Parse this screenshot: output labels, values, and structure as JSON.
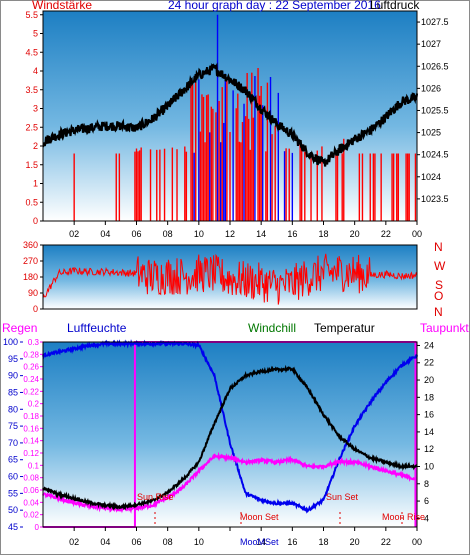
{
  "header": {
    "left_label": "Windstärke",
    "title": "24 hour graph day : 22 September 2016",
    "right_label": "Luftdruck"
  },
  "compass": [
    "N",
    "W",
    "S",
    "O",
    "N"
  ],
  "bottom_labels": {
    "regen": "Regen",
    "luftfeuchte": "Luftfeuchte",
    "windchill": "Windchill",
    "temperatur": "Temperatur",
    "taupunkt": "Taupunkt"
  },
  "events": {
    "sun_rise": "Sun Rise",
    "moon_set": "Moon Set",
    "sun_set": "Sun Set",
    "moon_rise": "Moon Rise",
    "moomset_axis": "MooMSet"
  },
  "colors": {
    "wind": "#ff0000",
    "wind_blue": "#0000ff",
    "pressure": "#000000",
    "humidity": "#0000ee",
    "temperature": "#000000",
    "dewpoint": "#ff00ff",
    "rain": "#ff00ff",
    "sky_top": "#1d7fc3",
    "sky_bottom": "#ffffff"
  },
  "chart_data": [
    {
      "type": "line",
      "title": "24 hour graph day : 22 September 2016",
      "x_ticks": [
        "02",
        "04",
        "06",
        "08",
        "10",
        "12",
        "14",
        "16",
        "18",
        "20",
        "22",
        "00"
      ],
      "y_left_label": "Windstärke",
      "y_left_ticks": [
        "0",
        "0.5",
        "1",
        "1.5",
        "2",
        "2.5",
        "3",
        "3.5",
        "4",
        "4.5",
        "5",
        "5.5"
      ],
      "y_left_range": [
        0,
        5.6
      ],
      "y_right_label": "Luftdruck",
      "y_right_ticks": [
        "1023.5",
        "1024",
        "1024.5",
        "1025",
        "1025.5",
        "1026",
        "1026.5",
        "1027",
        "1027.5"
      ],
      "y_right_range": [
        1023,
        1027.75
      ],
      "series": [
        {
          "name": "Luftdruck",
          "x": [
            0,
            1,
            2,
            3,
            4,
            5,
            6,
            7,
            8,
            9,
            10,
            11,
            12,
            13,
            14,
            15,
            16,
            17,
            18,
            19,
            20,
            21,
            22,
            23,
            24
          ],
          "values": [
            1024.8,
            1024.95,
            1025.05,
            1025.1,
            1025.15,
            1025.15,
            1025.1,
            1025.3,
            1025.6,
            1025.95,
            1026.3,
            1026.45,
            1026.2,
            1025.95,
            1025.55,
            1025.2,
            1024.95,
            1024.55,
            1024.3,
            1024.6,
            1024.85,
            1025.05,
            1025.35,
            1025.7,
            1025.8
          ]
        }
      ]
    },
    {
      "type": "line",
      "y_left_ticks": [
        "0",
        "90",
        "180",
        "270",
        "360"
      ],
      "y_left_range": [
        0,
        360
      ],
      "y_right_ticks": [
        "N",
        "W",
        "S",
        "O",
        "N"
      ],
      "series": [
        {
          "name": "Windrichtung",
          "x": [
            0,
            1,
            2,
            3,
            4,
            5,
            6,
            7,
            8,
            9,
            10,
            11,
            12,
            13,
            14,
            15,
            16,
            17,
            18,
            19,
            20,
            21,
            22,
            23,
            24
          ],
          "values": [
            60,
            200,
            215,
            210,
            210,
            205,
            200,
            180,
            190,
            185,
            200,
            195,
            170,
            160,
            150,
            130,
            140,
            180,
            200,
            210,
            200,
            190,
            195,
            185,
            190
          ]
        }
      ]
    },
    {
      "type": "line",
      "x_ticks": [
        "02",
        "04",
        "06",
        "08",
        "10",
        "12",
        "14",
        "16",
        "18",
        "20",
        "22",
        "00"
      ],
      "y_left_ticks": [
        "45",
        "50",
        "55",
        "60",
        "65",
        "70",
        "75",
        "80",
        "85",
        "90",
        "95",
        "100"
      ],
      "y_left_range": [
        45,
        100
      ],
      "y_rain_ticks": [
        "0",
        "0.02",
        "0.04",
        "0.06",
        "0.08",
        "0.1",
        "0.12",
        "0.14",
        "0.16",
        "0.18",
        "0.2",
        "0.22",
        "0.24",
        "0.26",
        "0.28",
        "0.3"
      ],
      "y_rain_range": [
        0,
        0.3
      ],
      "y_right_ticks": [
        "4",
        "6",
        "8",
        "10",
        "12",
        "14",
        "16",
        "18",
        "20",
        "22",
        "24"
      ],
      "y_right_range": [
        3,
        24.4
      ],
      "series": [
        {
          "name": "Luftfeuchte",
          "x": [
            0,
            1,
            2,
            3,
            4,
            5,
            6,
            7,
            8,
            9,
            10,
            11,
            12,
            13,
            14,
            15,
            16,
            17,
            18,
            19,
            20,
            21,
            22,
            23,
            24
          ],
          "values": [
            96,
            97,
            98,
            99,
            99.5,
            99.5,
            99.5,
            99.5,
            99.5,
            99.5,
            99,
            90,
            70,
            55,
            53,
            52,
            52,
            50,
            53,
            65,
            75,
            82,
            88,
            93,
            96
          ]
        },
        {
          "name": "Temperatur",
          "x": [
            0,
            1,
            2,
            3,
            4,
            5,
            6,
            7,
            8,
            9,
            10,
            11,
            12,
            13,
            14,
            15,
            16,
            17,
            18,
            19,
            20,
            21,
            22,
            23,
            24
          ],
          "values": [
            7.5,
            6.8,
            6.3,
            5.8,
            5.5,
            5.3,
            5.6,
            6.0,
            7.0,
            8.5,
            10.5,
            15.0,
            19.0,
            20.5,
            21.0,
            21.2,
            21.3,
            19.0,
            16.0,
            13.5,
            12.0,
            11.0,
            10.5,
            10.0,
            10.0
          ]
        },
        {
          "name": "Taupunkt",
          "x": [
            0,
            1,
            2,
            3,
            4,
            5,
            6,
            7,
            8,
            9,
            10,
            11,
            12,
            13,
            14,
            15,
            16,
            17,
            18,
            19,
            20,
            21,
            22,
            23,
            24
          ],
          "values": [
            6.8,
            6.3,
            5.8,
            5.4,
            5.2,
            5.0,
            5.2,
            5.5,
            6.4,
            7.6,
            9.5,
            11.2,
            11.0,
            10.5,
            10.7,
            10.5,
            10.8,
            10.0,
            10.0,
            10.6,
            10.5,
            10.0,
            9.5,
            9.0,
            8.5
          ]
        },
        {
          "name": "Regen",
          "x": [
            0,
            5.9,
            5.95,
            23.9,
            24
          ],
          "values": [
            0.3,
            0.3,
            0.3,
            0.3,
            0.3
          ]
        }
      ]
    }
  ]
}
